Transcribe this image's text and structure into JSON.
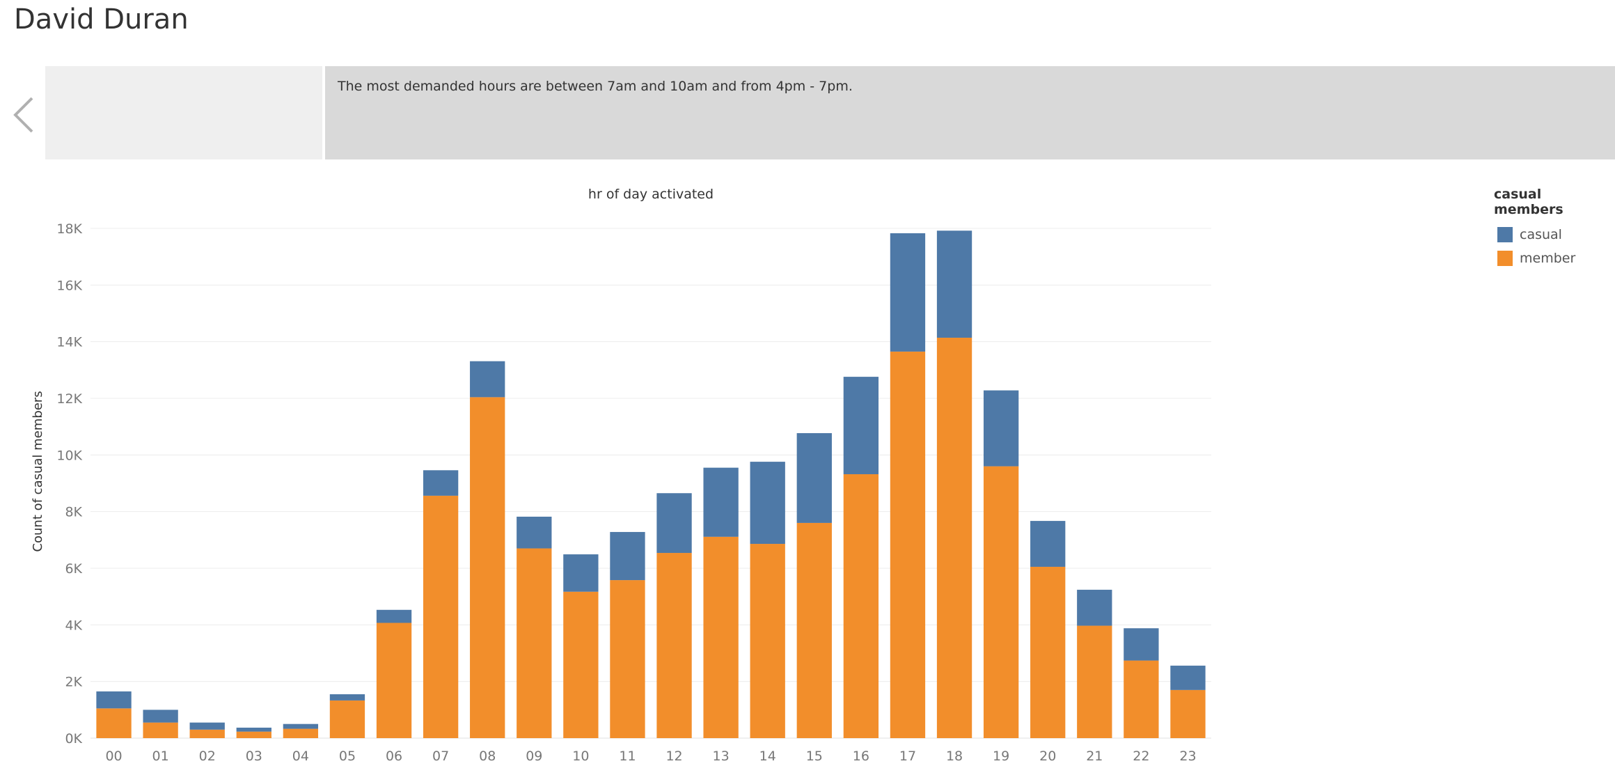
{
  "header": {
    "author": "David Duran"
  },
  "story": {
    "caption": "The most demanded hours are between 7am and 10am and from 4pm - 7pm."
  },
  "legend": {
    "title": "casual members",
    "items": [
      {
        "label": "casual",
        "color": "#4e79a7"
      },
      {
        "label": "member",
        "color": "#f28e2b"
      }
    ]
  },
  "chart_data": {
    "type": "bar",
    "stacked": true,
    "title": "hr of day activated",
    "xlabel": "",
    "ylabel": "Count of casual members",
    "categories": [
      "00",
      "01",
      "02",
      "03",
      "04",
      "05",
      "06",
      "07",
      "08",
      "09",
      "10",
      "11",
      "12",
      "13",
      "14",
      "15",
      "16",
      "17",
      "18",
      "19",
      "20",
      "21",
      "22",
      "23"
    ],
    "series": [
      {
        "name": "member",
        "color": "#f28e2b",
        "values": [
          1050,
          550,
          300,
          230,
          330,
          1330,
          4070,
          8560,
          12040,
          6700,
          5170,
          5580,
          6540,
          7110,
          6860,
          7600,
          9320,
          13650,
          14140,
          9600,
          6050,
          3970,
          2740,
          1700
        ]
      },
      {
        "name": "casual",
        "color": "#4e79a7",
        "values": [
          600,
          450,
          250,
          140,
          170,
          220,
          460,
          900,
          1270,
          1120,
          1320,
          1700,
          2110,
          2440,
          2900,
          3170,
          3440,
          4180,
          3780,
          2680,
          1620,
          1270,
          1140,
          860
        ]
      }
    ],
    "ylim": [
      0,
      18000
    ],
    "yticks": [
      0,
      2000,
      4000,
      6000,
      8000,
      10000,
      12000,
      14000,
      16000,
      18000
    ],
    "ytick_labels": [
      "0K",
      "2K",
      "4K",
      "6K",
      "8K",
      "10K",
      "12K",
      "14K",
      "16K",
      "18K"
    ],
    "grid": true,
    "legend_position": "top-right"
  }
}
